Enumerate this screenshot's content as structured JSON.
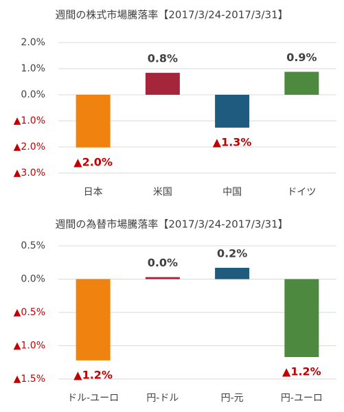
{
  "chart_data": [
    {
      "type": "bar",
      "title": "週間の株式市場騰落率【2017/3/24-2017/3/31】",
      "categories": [
        "日本",
        "米国",
        "中国",
        "ドイツ"
      ],
      "values": [
        -2.02,
        0.84,
        -1.26,
        0.88
      ],
      "value_labels": [
        "▲2.0%",
        "0.8%",
        "▲1.3%",
        "0.9%"
      ],
      "colors": [
        "#f0820f",
        "#a5253a",
        "#1f5a7f",
        "#4d8a3f"
      ],
      "ylim": [
        -3,
        2
      ],
      "yticks": [
        {
          "value": 2,
          "label": "2.0%"
        },
        {
          "value": 1,
          "label": "1.0%"
        },
        {
          "value": 0,
          "label": "0.0%"
        },
        {
          "value": -1,
          "label": "▲1.0%"
        },
        {
          "value": -2,
          "label": "▲2.0%"
        },
        {
          "value": -3,
          "label": "▲3.0%"
        }
      ],
      "grid": true
    },
    {
      "type": "bar",
      "title": "週間の為替市場騰落率【2017/3/24-2017/3/31】",
      "categories": [
        "ドル-ユーロ",
        "円-ドル",
        "円-元",
        "円-ユーロ"
      ],
      "values": [
        -1.22,
        0.03,
        0.17,
        -1.17
      ],
      "value_labels": [
        "▲1.2%",
        "0.0%",
        "0.2%",
        "▲1.2%"
      ],
      "colors": [
        "#f0820f",
        "#a5253a",
        "#1f5a7f",
        "#4d8a3f"
      ],
      "ylim": [
        -1.5,
        0.5
      ],
      "yticks": [
        {
          "value": 0.5,
          "label": "0.5%"
        },
        {
          "value": 0,
          "label": "0.0%"
        },
        {
          "value": -0.5,
          "label": "▲0.5%"
        },
        {
          "value": -1,
          "label": "▲1.0%"
        },
        {
          "value": -1.5,
          "label": "▲1.5%"
        }
      ],
      "grid": true
    }
  ]
}
